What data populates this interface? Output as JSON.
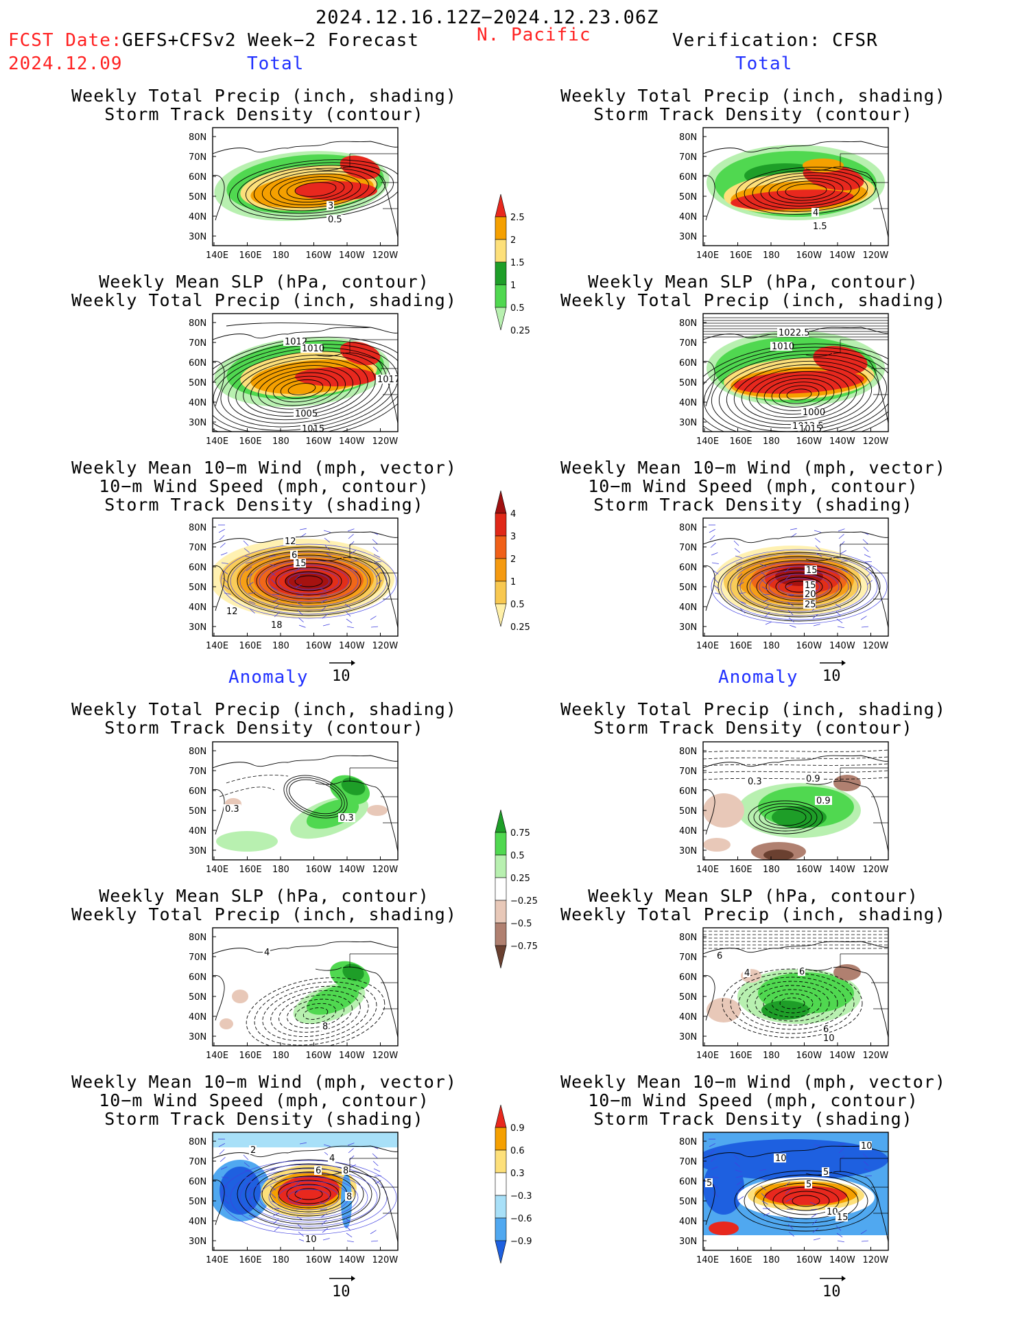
{
  "header": {
    "date_range": "2024.12.16.12Z−2024.12.23.06Z",
    "fcst_date_label": "FCST Date:",
    "fcst_product": "GEFS+CFSv2 Week−2 Forecast",
    "fcst_date": "2024.12.09",
    "region": "N. Pacific",
    "verification": "Verification: CFSR"
  },
  "section_labels": {
    "total": "Total",
    "anomaly": "Anomaly"
  },
  "titles": {
    "precip_std": [
      "Weekly Total Precip (inch, shading)",
      "Storm Track Density (contour)"
    ],
    "slp_precip": [
      "Weekly Mean SLP (hPa, contour)",
      "Weekly Total Precip (inch, shading)"
    ],
    "wind_std": [
      "Weekly Mean 10−m Wind (mph, vector)",
      "10−m Wind Speed (mph, contour)",
      "Storm Track Density (shading)"
    ]
  },
  "axes": {
    "lat": [
      "80N",
      "70N",
      "60N",
      "50N",
      "40N",
      "30N"
    ],
    "lon": [
      "140E",
      "160E",
      "180",
      "160W",
      "140W",
      "120W"
    ]
  },
  "vector_scale": "10",
  "colorbars": {
    "precip_total": {
      "labels": [
        "2.5",
        "2",
        "1.5",
        "1",
        "0.5",
        "0.25"
      ],
      "colors": [
        "#e8281e",
        "#f5a000",
        "#fde07a",
        "#1e9e28",
        "#50d850",
        "#b8f0b0"
      ]
    },
    "std_total": {
      "labels": [
        "4",
        "3",
        "2",
        "1",
        "0.5",
        "0.25"
      ],
      "colors": [
        "#a01010",
        "#e02818",
        "#f06018",
        "#f59a10",
        "#f8c850",
        "#fff0a8"
      ]
    },
    "precip_anom": {
      "labels": [
        "0.75",
        "0.5",
        "0.25",
        "−0.25",
        "−0.5",
        "−0.75"
      ],
      "colors": [
        "#1e9e28",
        "#50d850",
        "#b8f0b0",
        "#ffffff",
        "#e8c8b8",
        "#b08070",
        "#6a4030"
      ]
    },
    "std_anom": {
      "labels": [
        "0.9",
        "0.6",
        "0.3",
        "−0.3",
        "−0.6",
        "−0.9"
      ],
      "colors": [
        "#e8281e",
        "#f5a000",
        "#fde07a",
        "#ffffff",
        "#a8e0f8",
        "#50a8f0",
        "#1e60e0"
      ]
    }
  },
  "panel_labels": {
    "f1": [
      "3",
      "0.5"
    ],
    "v1": [
      "4",
      "1.5"
    ],
    "f2": [
      "1012",
      "1010",
      "1017",
      "1005",
      "1015"
    ],
    "v2": [
      "1022.5",
      "1010",
      "1000",
      "1012.5",
      "1015"
    ],
    "f3": [
      "12",
      "6",
      "15",
      "12",
      "18"
    ],
    "v3": [
      "15",
      "15",
      "20",
      "25"
    ],
    "f4": [
      "0.3",
      "0.3"
    ],
    "v4": [
      "0.3",
      "0.9",
      "0.9"
    ],
    "f5": [
      "4",
      "8"
    ],
    "v5": [
      "6",
      "4",
      "6",
      "6",
      "10"
    ],
    "f6": [
      "2",
      "4",
      "6",
      "8",
      "8",
      "10"
    ],
    "v6": [
      "10",
      "10",
      "5",
      "5",
      "5",
      "10",
      "15"
    ]
  }
}
